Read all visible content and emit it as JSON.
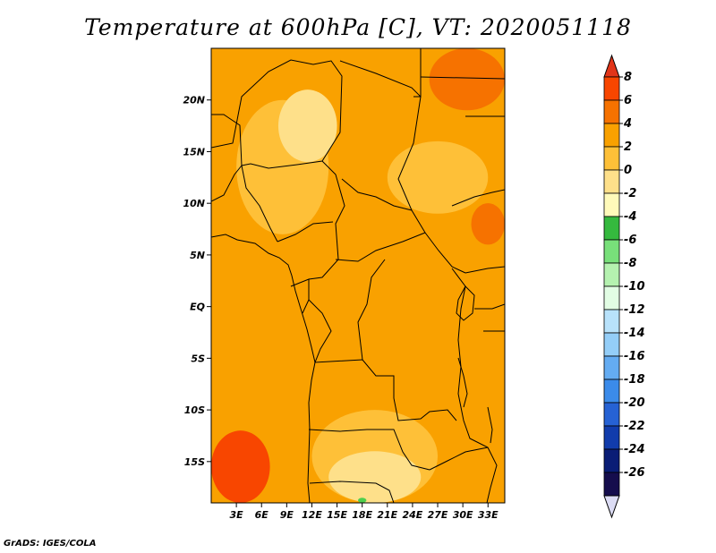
{
  "title": "Temperature at 600hPa [C], VT: 2020051118",
  "credit": "GrADS: IGES/COLA",
  "map": {
    "lat_range": [
      -19,
      25
    ],
    "lon_range": [
      0,
      35
    ],
    "lat_ticks": [
      {
        "value": 20,
        "label": "20N"
      },
      {
        "value": 15,
        "label": "15N"
      },
      {
        "value": 10,
        "label": "10N"
      },
      {
        "value": 5,
        "label": "5N"
      },
      {
        "value": 0,
        "label": "EQ"
      },
      {
        "value": -5,
        "label": "5S"
      },
      {
        "value": -10,
        "label": "10S"
      },
      {
        "value": -15,
        "label": "15S"
      }
    ],
    "lon_ticks": [
      {
        "value": 3,
        "label": "3E"
      },
      {
        "value": 6,
        "label": "6E"
      },
      {
        "value": 9,
        "label": "9E"
      },
      {
        "value": 12,
        "label": "12E"
      },
      {
        "value": 15,
        "label": "15E"
      },
      {
        "value": 18,
        "label": "18E"
      },
      {
        "value": 21,
        "label": "21E"
      },
      {
        "value": 24,
        "label": "24E"
      },
      {
        "value": 27,
        "label": "27E"
      },
      {
        "value": 30,
        "label": "30E"
      },
      {
        "value": 33,
        "label": "33E"
      }
    ],
    "background_color": "#f9a100",
    "regions": [
      {
        "band": "0 to 2",
        "color": "#fec038",
        "lon": [
          3,
          14
        ],
        "lat": [
          7,
          20
        ]
      },
      {
        "band": "-2 to 0",
        "color": "#fee08a",
        "lon": [
          8,
          15
        ],
        "lat": [
          14,
          21
        ]
      },
      {
        "band": "0 to 2",
        "color": "#fec038",
        "lon": [
          21,
          33
        ],
        "lat": [
          9,
          16
        ]
      },
      {
        "band": "0 to 2",
        "color": "#fec038",
        "lon": [
          12,
          27
        ],
        "lat": [
          -19,
          -10
        ]
      },
      {
        "band": "-2 to 0",
        "color": "#fee08a",
        "lon": [
          14,
          25
        ],
        "lat": [
          -19,
          -14
        ]
      },
      {
        "band": "6 to 8",
        "color": "#f84600",
        "lon": [
          0,
          7
        ],
        "lat": [
          -19,
          -12
        ]
      },
      {
        "band": "4 to 6",
        "color": "#f67200",
        "lon": [
          26,
          35
        ],
        "lat": [
          19,
          25
        ]
      },
      {
        "band": "4 to 6",
        "color": "#f67200",
        "lon": [
          31,
          35
        ],
        "lat": [
          6,
          10
        ]
      },
      {
        "band": "-6 to -4",
        "color": "#4ecf4e",
        "lon": [
          17.5,
          18.5
        ],
        "lat": [
          -19,
          -18.5
        ]
      }
    ]
  },
  "colorbar": {
    "levels": [
      "8",
      "6",
      "4",
      "2",
      "0",
      "-2",
      "-4",
      "-6",
      "-8",
      "-10",
      "-12",
      "-14",
      "-16",
      "-18",
      "-20",
      "-22",
      "-24",
      "-26"
    ],
    "colors": [
      "#e23519",
      "#f84600",
      "#f67200",
      "#f9a100",
      "#fec038",
      "#fee08a",
      "#fffaba",
      "#35b93e",
      "#78e07a",
      "#b5f2b0",
      "#e2fde4",
      "#b8e2fb",
      "#94cef8",
      "#64acf2",
      "#3b8bea",
      "#2662d4",
      "#113cac",
      "#0a1d76",
      "#150d4d",
      "#dcdcf4"
    ]
  }
}
